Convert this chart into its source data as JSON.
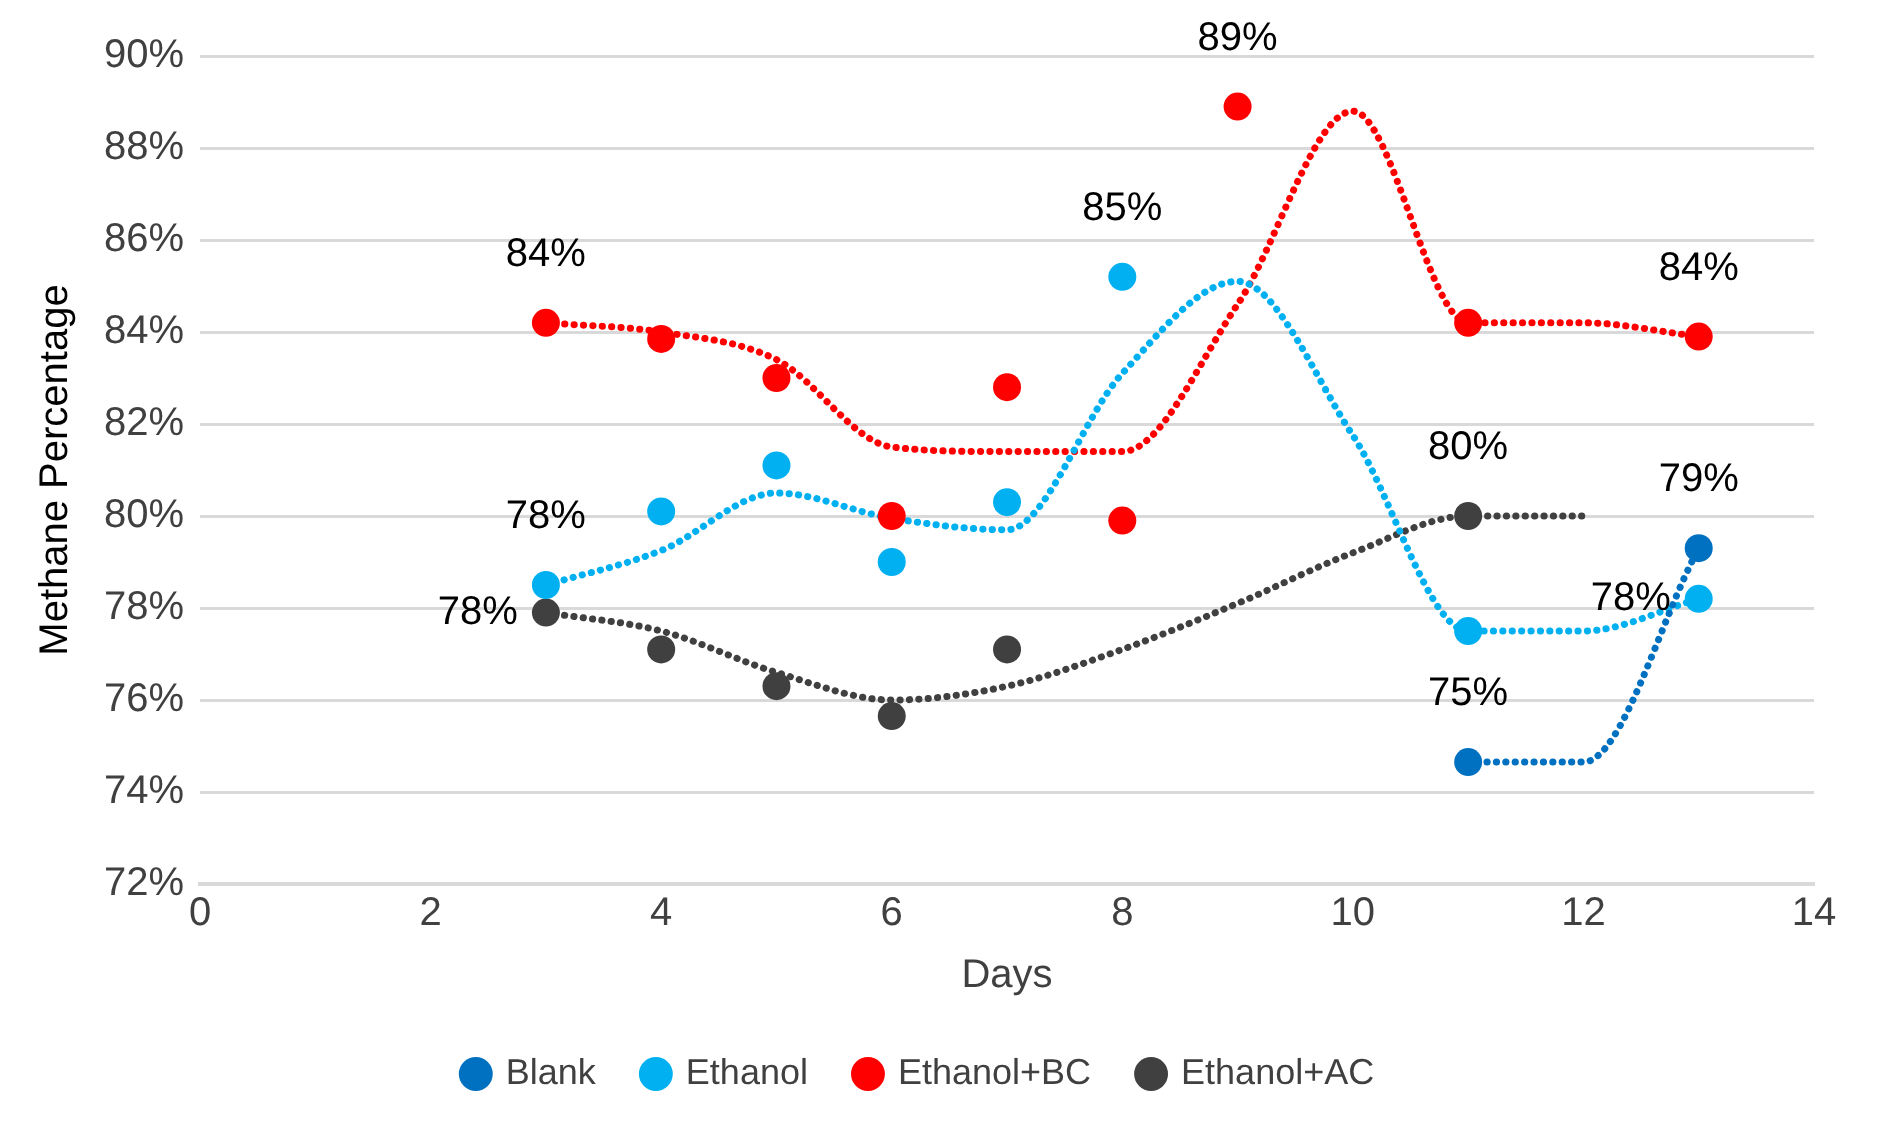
{
  "chart_data": {
    "type": "scatter",
    "xlabel": "Days",
    "ylabel": "Methane Percentage",
    "xlim": [
      0,
      14
    ],
    "xticks": [
      0,
      2,
      4,
      6,
      8,
      10,
      12,
      14
    ],
    "ylim": [
      72,
      90
    ],
    "yticks": [
      {
        "value": 72,
        "label": "72%"
      },
      {
        "value": 74,
        "label": "74%"
      },
      {
        "value": 76,
        "label": "76%"
      },
      {
        "value": 78,
        "label": "78%"
      },
      {
        "value": 80,
        "label": "80%"
      },
      {
        "value": 82,
        "label": "82%"
      },
      {
        "value": 84,
        "label": "84%"
      },
      {
        "value": 86,
        "label": "86%"
      },
      {
        "value": 88,
        "label": "88%"
      },
      {
        "value": 90,
        "label": "90%"
      }
    ],
    "grid": "y",
    "legend": "bottom",
    "marker": "circle",
    "series": [
      {
        "name": "Blank",
        "color": "#0070c0",
        "x": [
          11,
          13
        ],
        "values": [
          74.65,
          79.3
        ],
        "value_labels": [
          "75%",
          "79%"
        ]
      },
      {
        "name": "Ethanol",
        "color": "#00b0f0",
        "x": [
          3,
          4,
          5,
          6,
          7,
          8,
          11,
          13
        ],
        "values": [
          78.5,
          80.1,
          81.1,
          79.0,
          80.3,
          85.2,
          77.5,
          78.2
        ],
        "value_labels": [
          "78%",
          null,
          null,
          null,
          null,
          "85%",
          null,
          "78%"
        ]
      },
      {
        "name": "Ethanol+BC",
        "color": "#ff0000",
        "x": [
          3,
          4,
          5,
          6,
          7,
          8,
          9,
          11,
          13
        ],
        "values": [
          84.2,
          83.85,
          83.0,
          80.0,
          82.8,
          79.9,
          88.9,
          84.2,
          83.9
        ],
        "value_labels": [
          "84%",
          null,
          null,
          null,
          null,
          null,
          "89%",
          null,
          "84%"
        ]
      },
      {
        "name": "Ethanol+AC",
        "color": "#404040",
        "x": [
          3,
          4,
          5,
          6,
          7,
          11
        ],
        "values": [
          77.9,
          77.1,
          76.3,
          75.65,
          77.1,
          80.0
        ],
        "value_labels": [
          "78%",
          null,
          null,
          null,
          null,
          "80%"
        ]
      },
      {
        "type": "line",
        "color": "#0070c0",
        "marker": "none",
        "line_style": "dotted",
        "x": [
          11,
          12,
          13
        ],
        "values": [
          74.65,
          74.65,
          79.3
        ]
      },
      {
        "type": "line",
        "color": "#00b0f0",
        "marker": "none",
        "line_style": "dotted",
        "x": [
          3,
          4,
          5,
          6,
          7,
          8,
          9,
          10,
          11,
          12,
          13
        ],
        "values": [
          78.5,
          79.25,
          80.5,
          79.95,
          79.7,
          83.1,
          85.1,
          81.75,
          77.5,
          77.5,
          78.2
        ]
      },
      {
        "type": "line",
        "color": "#ff0000",
        "marker": "none",
        "line_style": "dotted",
        "x": [
          3,
          4,
          5,
          6,
          7,
          8,
          9,
          10,
          11,
          12,
          13
        ],
        "values": [
          84.2,
          84.0,
          83.4,
          81.5,
          81.4,
          81.4,
          84.6,
          88.8,
          84.2,
          84.2,
          83.9
        ]
      },
      {
        "type": "line",
        "color": "#404040",
        "marker": "none",
        "line_style": "dotted",
        "x": [
          3,
          4,
          5,
          6,
          7,
          8,
          9,
          10,
          11,
          12
        ],
        "values": [
          77.9,
          77.5,
          76.6,
          76.0,
          76.3,
          77.1,
          78.1,
          79.2,
          80.0,
          80.0
        ]
      }
    ]
  }
}
